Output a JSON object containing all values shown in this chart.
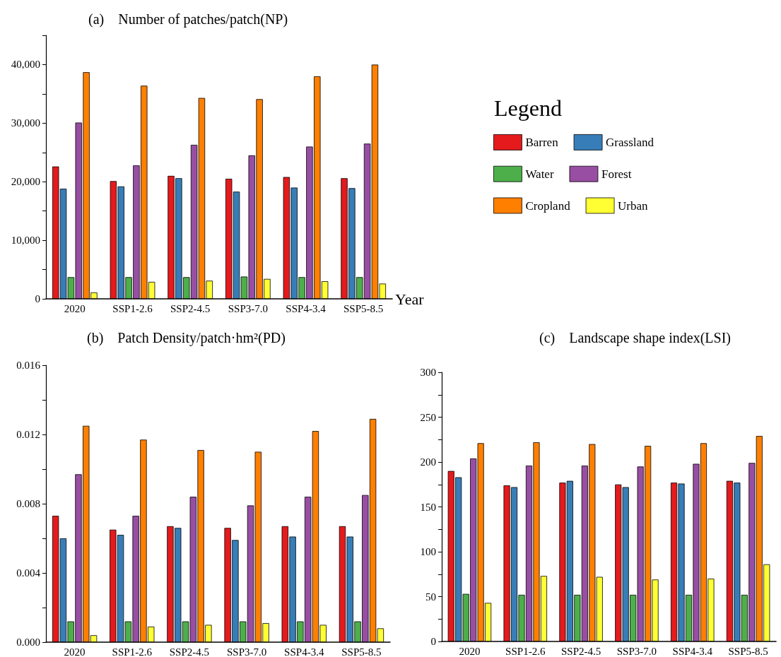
{
  "chart_data": [
    {
      "type": "bar",
      "title": "(a)    Number of patches/patch(NP)",
      "xlabel": "Year",
      "legend": "right",
      "legend_title": "Legend",
      "categories": [
        "2020",
        "SSP1-2.6",
        "SSP2-4.5",
        "SSP3-7.0",
        "SSP4-3.4",
        "SSP5-8.5"
      ],
      "ylim": [
        0,
        45000
      ],
      "yticks": [
        {
          "value": 0,
          "label": "0"
        },
        {
          "value": 5000,
          "label": null
        },
        {
          "value": 10000,
          "label": "10,000"
        },
        {
          "value": 15000,
          "label": null
        },
        {
          "value": 20000,
          "label": "20,000"
        },
        {
          "value": 25000,
          "label": null
        },
        {
          "value": 30000,
          "label": "30,000"
        },
        {
          "value": 35000,
          "label": null
        },
        {
          "value": 40000,
          "label": "40,000"
        },
        {
          "value": 45000,
          "label": null
        }
      ],
      "series": [
        {
          "name": "Barren",
          "color": "#e41a1c",
          "values": [
            22600,
            20100,
            21000,
            20500,
            20800,
            20600
          ]
        },
        {
          "name": "Grassland",
          "color": "#377eb8",
          "values": [
            18800,
            19200,
            20600,
            18300,
            19000,
            18900
          ]
        },
        {
          "name": "Water",
          "color": "#4daf4a",
          "values": [
            3700,
            3700,
            3700,
            3800,
            3700,
            3700
          ]
        },
        {
          "name": "Forest",
          "color": "#984ea3",
          "values": [
            30100,
            22800,
            26300,
            24500,
            26000,
            26500
          ]
        },
        {
          "name": "Cropland",
          "color": "#ff7f00",
          "values": [
            38700,
            36400,
            34300,
            34100,
            38000,
            40000
          ]
        },
        {
          "name": "Urban",
          "color": "#ffff33",
          "values": [
            1100,
            2900,
            3100,
            3400,
            3000,
            2600
          ]
        }
      ]
    },
    {
      "type": "bar",
      "title": "(b)    Patch Density/patch·hm²(PD)",
      "categories": [
        "2020",
        "SSP1-2.6",
        "SSP2-4.5",
        "SSP3-7.0",
        "SSP4-3.4",
        "SSP5-8.5"
      ],
      "ylim": [
        0,
        0.016
      ],
      "yticks": [
        {
          "value": 0,
          "label": "0.000"
        },
        {
          "value": 0.002,
          "label": null
        },
        {
          "value": 0.004,
          "label": "0.004"
        },
        {
          "value": 0.006,
          "label": null
        },
        {
          "value": 0.008,
          "label": "0.008"
        },
        {
          "value": 0.01,
          "label": null
        },
        {
          "value": 0.012,
          "label": "0.012"
        },
        {
          "value": 0.014,
          "label": null
        },
        {
          "value": 0.016,
          "label": "0.016"
        }
      ],
      "series": [
        {
          "color": "#e41a1c",
          "values": [
            0.0073,
            0.0065,
            0.0067,
            0.0066,
            0.0067,
            0.0067
          ]
        },
        {
          "color": "#377eb8",
          "values": [
            0.006,
            0.0062,
            0.0066,
            0.0059,
            0.0061,
            0.0061
          ]
        },
        {
          "color": "#4daf4a",
          "values": [
            0.0012,
            0.0012,
            0.0012,
            0.0012,
            0.0012,
            0.0012
          ]
        },
        {
          "color": "#984ea3",
          "values": [
            0.0097,
            0.0073,
            0.0084,
            0.0079,
            0.0084,
            0.0085
          ]
        },
        {
          "color": "#ff7f00",
          "values": [
            0.0125,
            0.0117,
            0.0111,
            0.011,
            0.0122,
            0.0129
          ]
        },
        {
          "color": "#ffff33",
          "values": [
            0.0004,
            0.0009,
            0.001,
            0.0011,
            0.001,
            0.0008
          ]
        }
      ]
    },
    {
      "type": "bar",
      "title": "(c)    Landscape shape index(LSI)",
      "categories": [
        "2020",
        "SSP1-2.6",
        "SSP2-4.5",
        "SSP3-7.0",
        "SSP4-3.4",
        "SSP5-8.5"
      ],
      "ylim": [
        0,
        300
      ],
      "yticks": [
        0,
        {
          "value": 25,
          "label": null
        },
        50,
        {
          "value": 75,
          "label": null
        },
        100,
        {
          "value": 125,
          "label": null
        },
        150,
        {
          "value": 175,
          "label": null
        },
        200,
        {
          "value": 225,
          "label": null
        },
        250,
        {
          "value": 275,
          "label": null
        },
        300
      ],
      "series": [
        {
          "color": "#e41a1c",
          "values": [
            190,
            174,
            177,
            175,
            177,
            179
          ]
        },
        {
          "color": "#377eb8",
          "values": [
            183,
            172,
            179,
            172,
            176,
            177
          ]
        },
        {
          "color": "#4daf4a",
          "values": [
            53,
            52,
            52,
            52,
            52,
            52
          ]
        },
        {
          "color": "#984ea3",
          "values": [
            204,
            196,
            196,
            195,
            198,
            199
          ]
        },
        {
          "color": "#ff7f00",
          "values": [
            221,
            222,
            220,
            218,
            221,
            229
          ]
        },
        {
          "color": "#ffff33",
          "values": [
            43,
            73,
            72,
            69,
            70,
            86
          ]
        }
      ]
    }
  ]
}
